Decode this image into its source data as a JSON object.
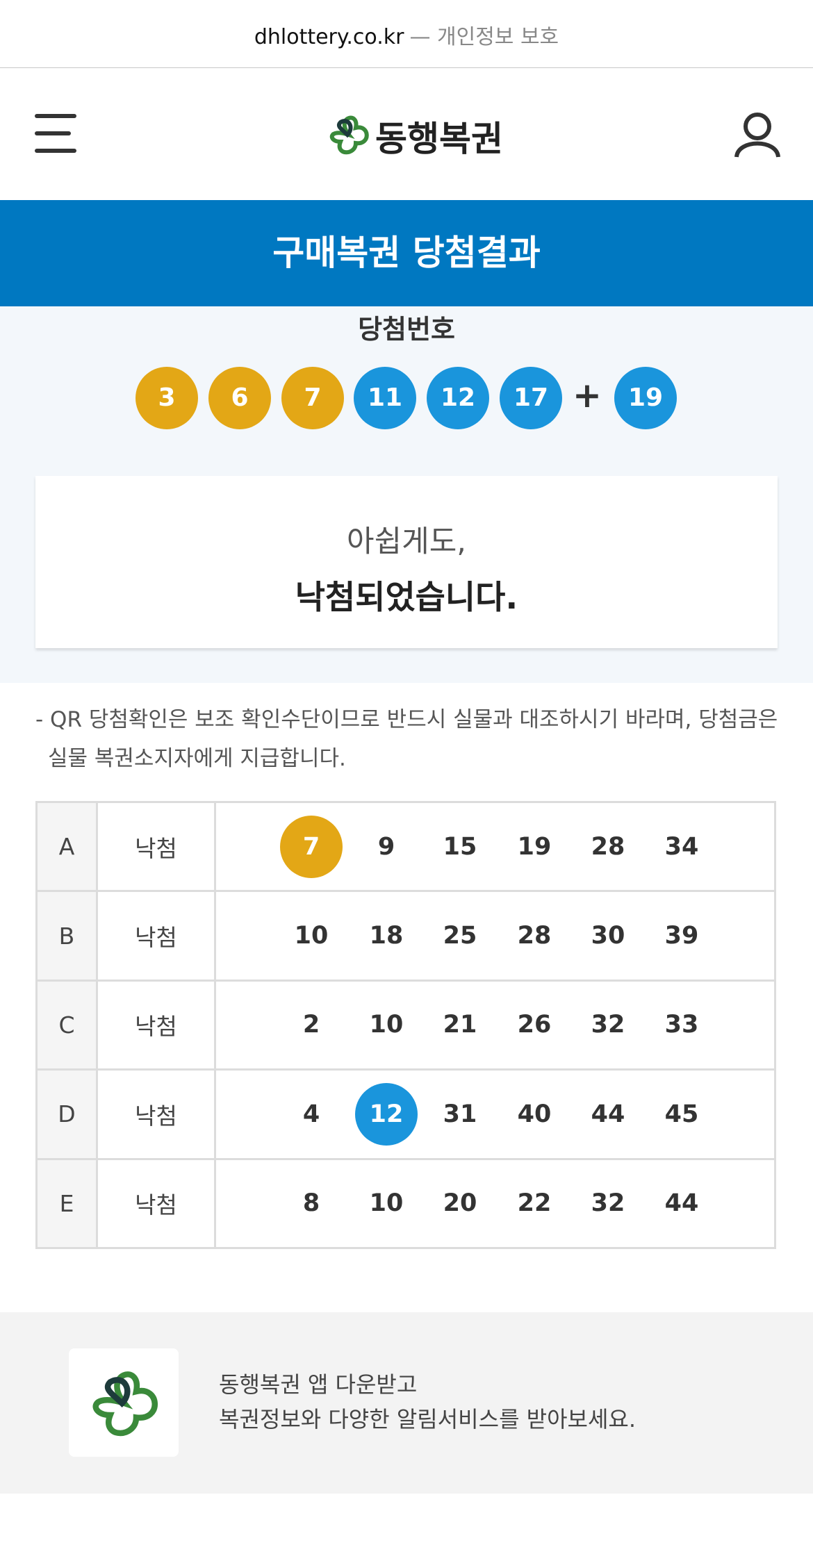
{
  "url_bar": {
    "domain": "dhlottery.co.kr",
    "suffix": "— 개인정보 보호"
  },
  "header": {
    "brand": "동행복권"
  },
  "banner": {
    "title": "구매복권 당첨결과"
  },
  "winning": {
    "label": "당첨번호",
    "numbers": [
      {
        "number": 3,
        "color": "#e3a716"
      },
      {
        "number": 6,
        "color": "#e3a716"
      },
      {
        "number": 7,
        "color": "#e3a716"
      },
      {
        "number": 11,
        "color": "#1a95dc"
      },
      {
        "number": 12,
        "color": "#1a95dc"
      },
      {
        "number": 17,
        "color": "#1a95dc"
      }
    ],
    "plus": "+",
    "bonus": {
      "number": 19,
      "color": "#1a95dc"
    }
  },
  "result": {
    "line1": "아쉽게도,",
    "line2": "낙첨되었습니다."
  },
  "notice": "- QR 당첨확인은 보조 확인수단이므로 반드시 실물과 대조하시기 바라며, 당첨금은 실물 복권소지자에게 지급합니다.",
  "table": {
    "rows": [
      {
        "game": "A",
        "status": "낙첨",
        "numbers": [
          7,
          9,
          15,
          19,
          28,
          34
        ]
      },
      {
        "game": "B",
        "status": "낙첨",
        "numbers": [
          10,
          18,
          25,
          28,
          30,
          39
        ]
      },
      {
        "game": "C",
        "status": "낙첨",
        "numbers": [
          2,
          10,
          21,
          26,
          32,
          33
        ]
      },
      {
        "game": "D",
        "status": "낙첨",
        "numbers": [
          4,
          12,
          31,
          40,
          44,
          45
        ]
      },
      {
        "game": "E",
        "status": "낙첨",
        "numbers": [
          8,
          10,
          20,
          22,
          32,
          44
        ]
      }
    ]
  },
  "footer": {
    "line1": "동행복권 앱 다운받고",
    "line2": "복권정보와 다양한 알림서비스를 받아보세요."
  }
}
